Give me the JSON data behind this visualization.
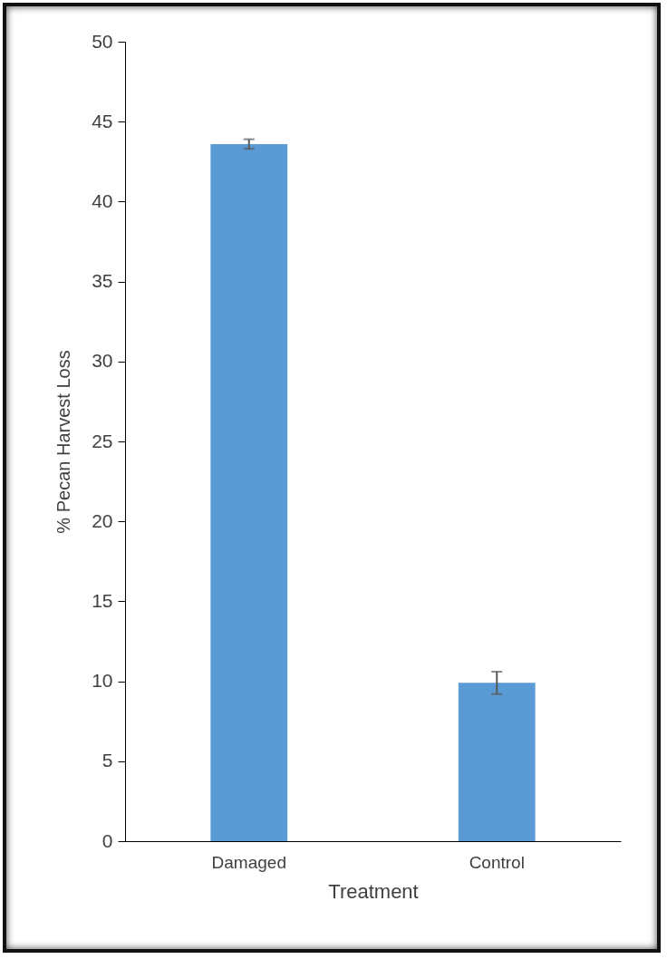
{
  "chart_data": {
    "type": "bar",
    "xlabel": "Treatment",
    "ylabel": "% Pecan Harvest Loss",
    "categories": [
      "Damaged",
      "Control"
    ],
    "values": [
      43.6,
      9.9
    ],
    "errors": [
      0.3,
      0.7
    ],
    "color": "#5b9bd5",
    "ylim": [
      0,
      50
    ],
    "yticks": [
      0,
      5,
      10,
      15,
      20,
      25,
      30,
      35,
      40,
      45,
      50
    ],
    "grid": false
  }
}
